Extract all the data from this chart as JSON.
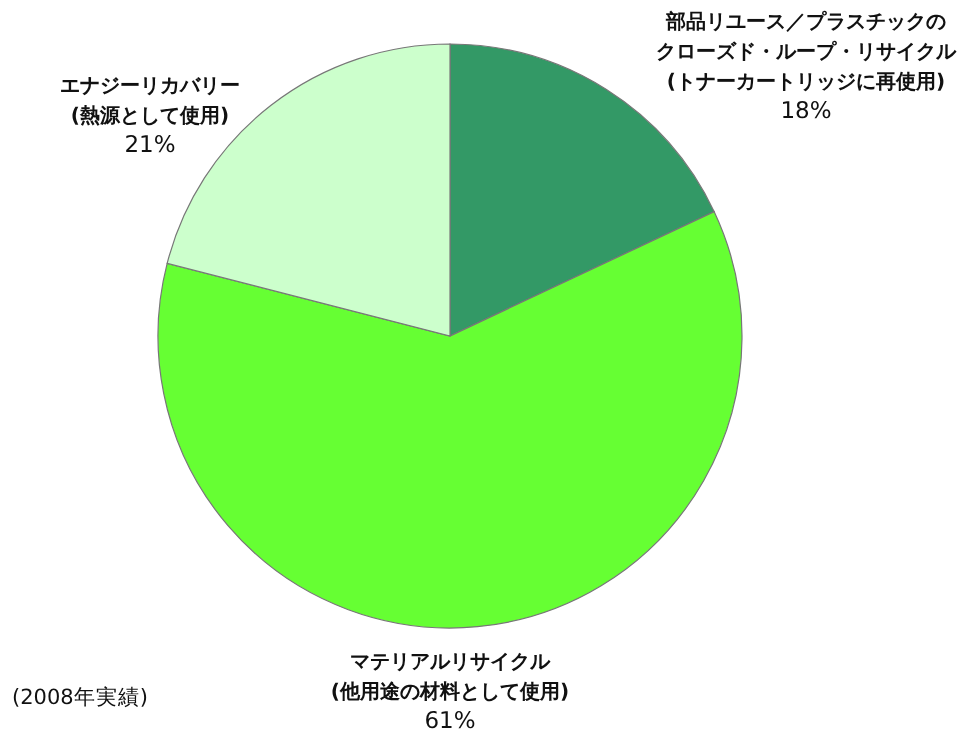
{
  "chart_data": {
    "type": "pie",
    "categories": [
      "部品リユース／プラスチックのクローズド・ループ・リサイクル(トナーカートリッジに再使用)",
      "マテリアルリサイクル(他用途の材料として使用)",
      "エナジーリカバリー(熱源として使用)"
    ],
    "values": [
      18,
      61,
      21
    ],
    "value_labels": [
      "18%",
      "61%",
      "21%"
    ],
    "colors": [
      "#339966",
      "#66ff33",
      "#ccffcc"
    ],
    "annotations": [
      "(2008年実績)"
    ]
  }
}
